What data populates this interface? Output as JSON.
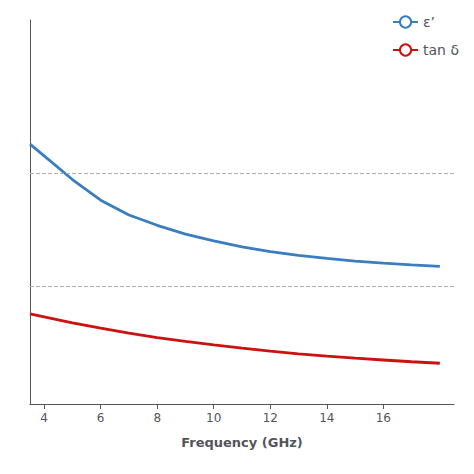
{
  "chart_data": {
    "type": "line",
    "xlabel": "Frequency (GHz)",
    "series": [
      {
        "name": "ε’",
        "color": "#3a7ebf",
        "x": [
          3.5,
          4,
          5,
          6,
          7,
          8,
          9,
          10,
          11,
          12,
          13,
          14,
          15,
          16,
          17,
          18
        ],
        "values": [
          8.8,
          8.4,
          7.6,
          6.9,
          6.4,
          6.05,
          5.75,
          5.52,
          5.32,
          5.16,
          5.03,
          4.93,
          4.84,
          4.77,
          4.71,
          4.66
        ]
      },
      {
        "name": "tan δ",
        "color": "#cc1111",
        "x": [
          3.5,
          4,
          5,
          6,
          7,
          8,
          9,
          10,
          11,
          12,
          13,
          14,
          15,
          16,
          17,
          18
        ],
        "values": [
          3.05,
          2.95,
          2.75,
          2.57,
          2.4,
          2.25,
          2.12,
          2.0,
          1.89,
          1.79,
          1.7,
          1.62,
          1.55,
          1.49,
          1.43,
          1.38
        ]
      }
    ],
    "hlines": [
      {
        "value": 7.8,
        "color": "#b0b0b0",
        "line_style": "dashed"
      },
      {
        "value": 4.0,
        "color": "#b0b0b0",
        "line_style": "dashed"
      }
    ],
    "xlim": [
      3.5,
      18.5
    ],
    "xticks": [
      4,
      6,
      8,
      10,
      12,
      14,
      16
    ],
    "ylim": [
      0.0,
      13.0
    ],
    "tick_labels": "x",
    "grid": false,
    "legend": "upper right"
  }
}
